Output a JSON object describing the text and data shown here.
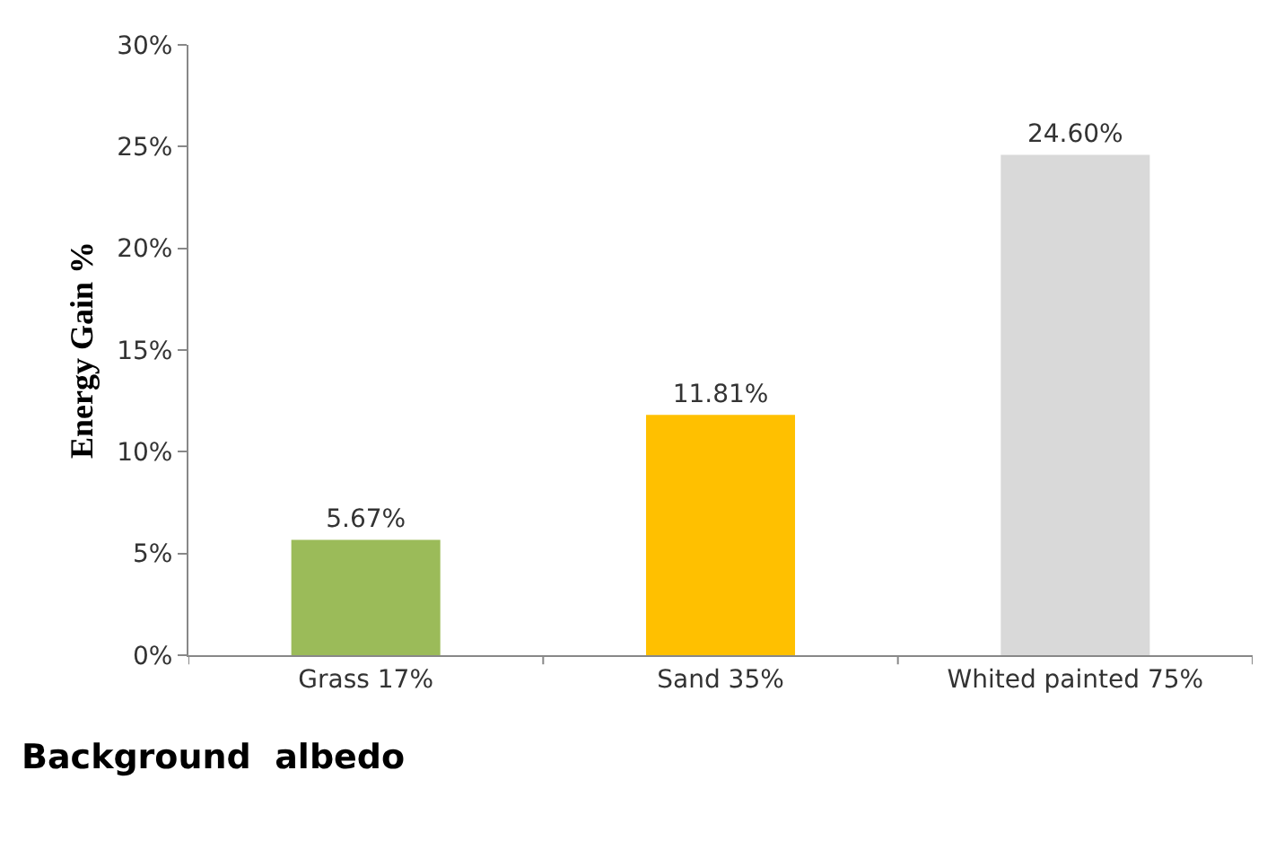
{
  "chart_data": {
    "type": "bar",
    "ylabel": "Energy Gain %",
    "xlabel": "Background  albedo",
    "categories": [
      "Grass 17%",
      "Sand 35%",
      "Whited painted 75%"
    ],
    "values": [
      5.67,
      11.81,
      24.6
    ],
    "colors": [
      "#9bbb59",
      "#ffc000",
      "#d9d9d9"
    ],
    "value_labels": [
      "5.67%",
      "11.81%",
      "24.60%"
    ],
    "ylim": [
      0,
      30
    ],
    "yticks": [
      {
        "value": 0,
        "label": "0%"
      },
      {
        "value": 5,
        "label": "5%"
      },
      {
        "value": 10,
        "label": "10%"
      },
      {
        "value": 15,
        "label": "15%"
      },
      {
        "value": 20,
        "label": "20%"
      },
      {
        "value": 25,
        "label": "25%"
      },
      {
        "value": 30,
        "label": "30%"
      }
    ]
  }
}
